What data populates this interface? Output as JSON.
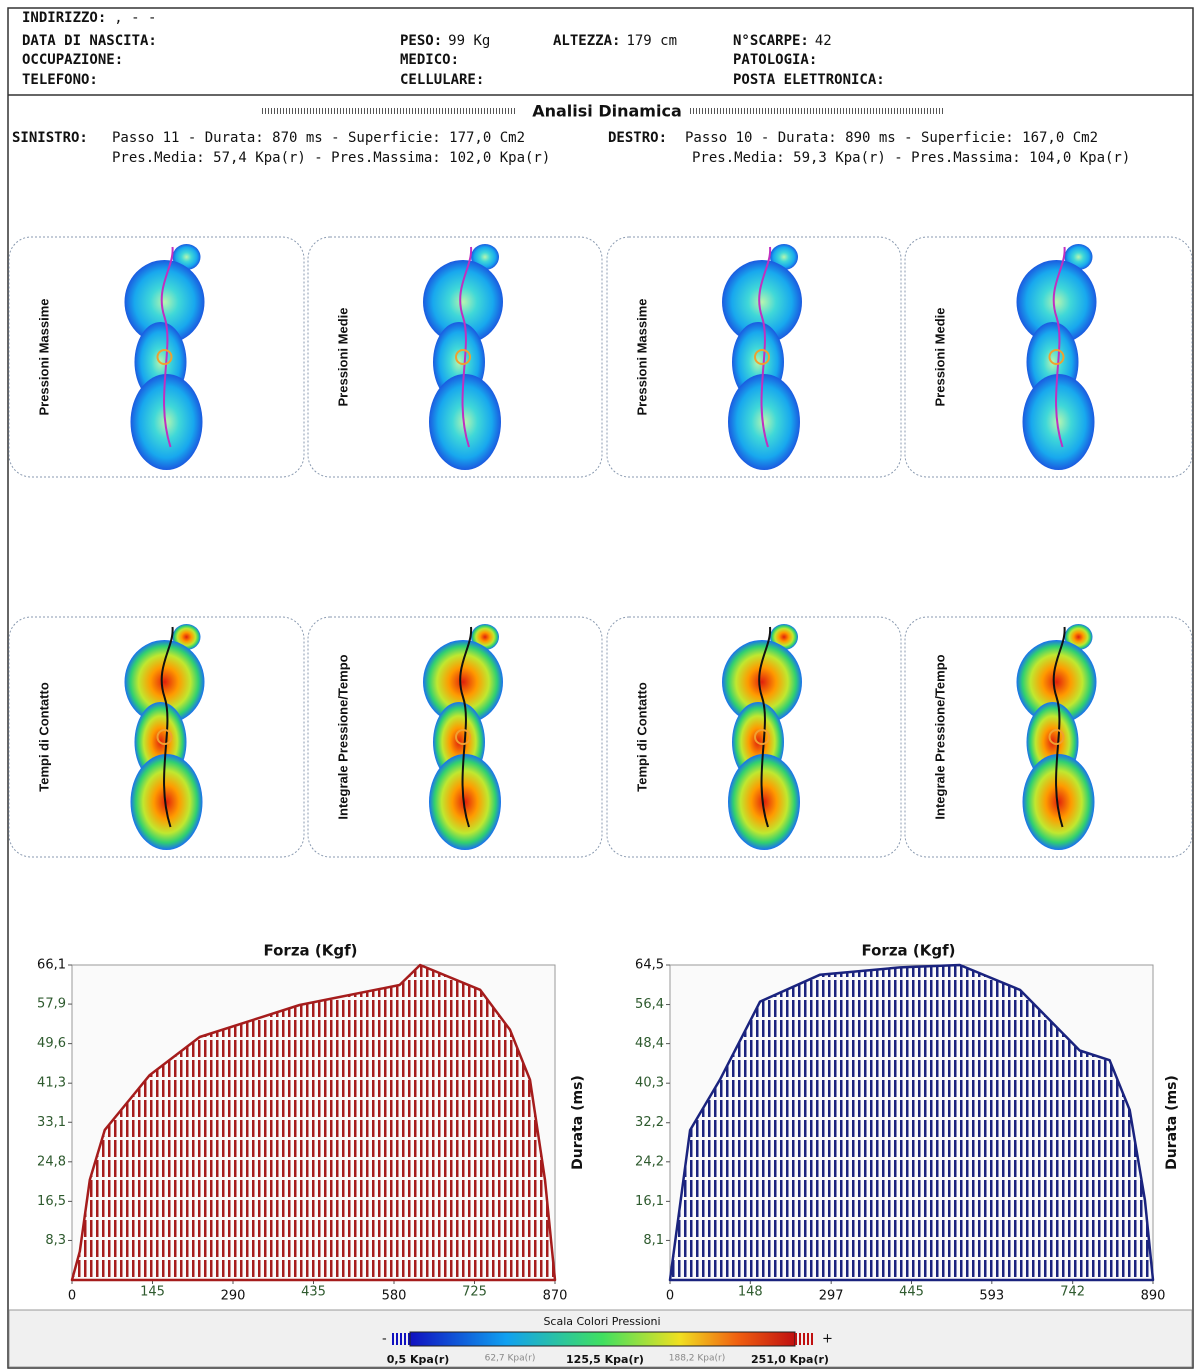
{
  "header": {
    "rows": [
      [
        {
          "label": "INDIRIZZO:",
          "value": ",   -   -"
        }
      ],
      [
        {
          "label": "DATA DI NASCITA:"
        },
        {
          "label": "PESO:",
          "value": "99 Kg"
        },
        {
          "label": "ALTEZZA:",
          "value": "179 cm"
        },
        {
          "label": "N°SCARPE:",
          "value": "42"
        }
      ],
      [
        {
          "label": "OCCUPAZIONE:"
        },
        {
          "label": "MEDICO:"
        },
        {
          "label": "PATOLOGIA:"
        }
      ],
      [
        {
          "label": "TELEFONO:"
        },
        {
          "label": "CELLULARE:"
        },
        {
          "label": "POSTA ELETTRONICA:"
        }
      ]
    ]
  },
  "section_title": "Analisi Dinamica",
  "summary": [
    {
      "side": "SINISTRO:",
      "line1": "Passo 11 - Durata: 870 ms - Superficie: 177,0 Cm2",
      "line2": "Pres.Media: 57,4 Kpa(r) - Pres.Massima: 102,0 Kpa(r)"
    },
    {
      "side": "DESTRO:",
      "line1": "Passo 10 - Durata: 890 ms - Superficie: 167,0 Cm2",
      "line2": "Pres.Media: 59,3 Kpa(r) - Pres.Massima: 104,0 Kpa(r)"
    }
  ],
  "panels": [
    [
      "Pressioni Massime",
      "Pressioni Medie",
      "Pressioni Massime",
      "Pressioni Medie"
    ],
    [
      "Tempi di Contatto",
      "Integrale Pressione/Tempo",
      "Tempi di Contatto",
      "Integrale Pressione/Tempo"
    ]
  ],
  "chart_data": [
    {
      "type": "area",
      "title": "Forza (Kgf)",
      "axis_label": "Durata (ms)",
      "color": "#a51c1c",
      "x": [
        0,
        14,
        32,
        59,
        140,
        230,
        410,
        590,
        627,
        735,
        789,
        825,
        852,
        870
      ],
      "values": [
        0,
        6,
        21,
        31.5,
        43,
        51,
        57.7,
        61.9,
        66.1,
        60.9,
        52.5,
        42,
        21,
        0
      ],
      "xlim": [
        0,
        870
      ],
      "xticks": [
        0,
        145,
        290,
        435,
        580,
        725,
        870
      ],
      "ylim": [
        0,
        66.1
      ],
      "yticks": [
        {
          "value": 8.3,
          "label": "8,3"
        },
        {
          "value": 16.5,
          "label": "16,5"
        },
        {
          "value": 24.8,
          "label": "24,8"
        },
        {
          "value": 33.1,
          "label": "33,1"
        },
        {
          "value": 41.3,
          "label": "41,3"
        },
        {
          "value": 49.6,
          "label": "49,6"
        },
        {
          "value": 57.9,
          "label": "57,9"
        },
        {
          "value": 66.1,
          "label": "66,1"
        }
      ]
    },
    {
      "type": "area",
      "title": "Forza (Kgf)",
      "axis_label": "Durata (ms)",
      "color": "#1a237e",
      "x": [
        0,
        37,
        92,
        166,
        276,
        424,
        534,
        645,
        755,
        810,
        847,
        875,
        890
      ],
      "values": [
        0,
        30.7,
        41,
        57,
        62.5,
        64,
        64.5,
        59.4,
        47,
        45,
        34.8,
        16.4,
        0
      ],
      "xlim": [
        0,
        890
      ],
      "xticks": [
        0,
        148,
        297,
        445,
        593,
        742,
        890
      ],
      "ylim": [
        0,
        64.5
      ],
      "yticks": [
        {
          "value": 8.1,
          "label": "8,1"
        },
        {
          "value": 16.1,
          "label": "16,1"
        },
        {
          "value": 24.2,
          "label": "24,2"
        },
        {
          "value": 32.2,
          "label": "32,2"
        },
        {
          "value": 40.3,
          "label": "40,3"
        },
        {
          "value": 48.4,
          "label": "48,4"
        },
        {
          "value": 56.4,
          "label": "56,4"
        },
        {
          "value": 64.5,
          "label": "64,5"
        }
      ]
    }
  ],
  "scale": {
    "title": "Scala Colori Pressioni",
    "minus": "-",
    "plus": "+",
    "labels": [
      "0,5 Kpa(r)",
      "62,7 Kpa(r)",
      "125,5 Kpa(r)",
      "188,2 Kpa(r)",
      "251,0 Kpa(r)"
    ]
  }
}
